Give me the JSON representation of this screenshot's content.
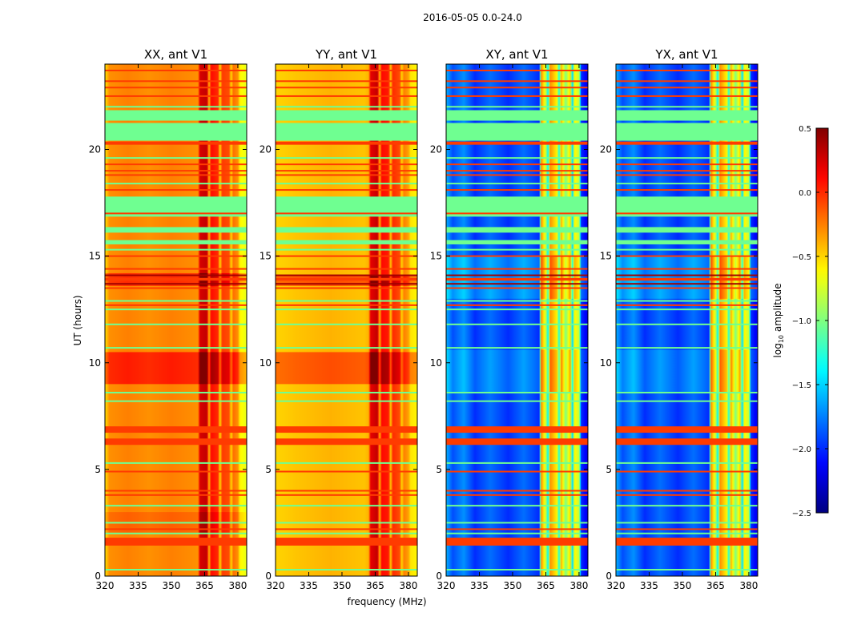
{
  "chart_data": {
    "type": "heatmap",
    "title": "2016-05-05 0.0-24.0",
    "xlabel": "frequency (MHz)",
    "ylabel": "UT (hours)",
    "xlim": [
      320,
      384
    ],
    "ylim": [
      0,
      24
    ],
    "xticks": [
      320,
      335,
      350,
      365,
      380
    ],
    "xtick_labels": [
      "320",
      "335",
      "350",
      "365",
      "380"
    ],
    "yticks": [
      0,
      5,
      10,
      15,
      20
    ],
    "ytick_labels": [
      "0",
      "5",
      "10",
      "15",
      "20"
    ],
    "colorbar": {
      "label": "log10 amplitude",
      "label_main": "log",
      "label_sub": "10",
      "label_rest": " amplitude",
      "range": [
        -2.5,
        0.5
      ],
      "ticks": [
        0.5,
        0.0,
        -0.5,
        -1.0,
        -1.5,
        -2.0,
        -2.5
      ],
      "tick_labels": [
        "0.5",
        "0.0",
        "−0.5",
        "−1.0",
        "−1.5",
        "−2.0",
        "−2.5"
      ],
      "colormap": "jet"
    },
    "panels": [
      {
        "title": "XX, ant V1",
        "frequency_profile": [
          [
            320,
            -0.55
          ],
          [
            322,
            -0.3
          ],
          [
            330,
            -0.25
          ],
          [
            340,
            -0.3
          ],
          [
            350,
            -0.25
          ],
          [
            362,
            -0.3
          ],
          [
            363,
            0.25
          ],
          [
            366,
            0.3
          ],
          [
            367,
            -0.4
          ],
          [
            368,
            0.1
          ],
          [
            371,
            0.0
          ],
          [
            372,
            -0.5
          ],
          [
            373,
            -0.05
          ],
          [
            376,
            -0.1
          ],
          [
            377,
            -0.5
          ],
          [
            378,
            -0.2
          ],
          [
            380,
            -0.3
          ],
          [
            381,
            -0.6
          ],
          [
            384,
            -0.7
          ]
        ],
        "shifts": [
          {
            "ut": [
              9.0,
              10.5
            ],
            "delta": 0.3
          },
          {
            "ut": [
              13.6,
              14.2
            ],
            "delta": 0.25
          },
          {
            "ut": [
              2.0,
              3.0
            ],
            "delta": 0.1
          }
        ]
      },
      {
        "title": "YY, ant V1",
        "frequency_profile": [
          [
            320,
            -0.5
          ],
          [
            330,
            -0.45
          ],
          [
            345,
            -0.4
          ],
          [
            360,
            -0.45
          ],
          [
            362,
            -0.4
          ],
          [
            363,
            0.2
          ],
          [
            366,
            0.3
          ],
          [
            367,
            -0.4
          ],
          [
            368,
            0.1
          ],
          [
            371,
            0.05
          ],
          [
            372,
            -0.45
          ],
          [
            373,
            0.0
          ],
          [
            376,
            -0.1
          ],
          [
            377,
            -0.5
          ],
          [
            378,
            -0.25
          ],
          [
            380,
            -0.35
          ],
          [
            381,
            -0.55
          ],
          [
            384,
            -0.6
          ]
        ],
        "shifts": [
          {
            "ut": [
              9.0,
              10.5
            ],
            "delta": 0.3
          },
          {
            "ut": [
              13.6,
              14.1
            ],
            "delta": 0.3
          }
        ]
      },
      {
        "title": "XY, ant V1",
        "frequency_profile": [
          [
            320,
            -1.6
          ],
          [
            323,
            -1.9
          ],
          [
            328,
            -1.7
          ],
          [
            333,
            -2.0
          ],
          [
            340,
            -1.8
          ],
          [
            348,
            -2.0
          ],
          [
            355,
            -1.8
          ],
          [
            362,
            -2.0
          ],
          [
            363,
            -0.3
          ],
          [
            365,
            -0.8
          ],
          [
            366,
            -1.4
          ],
          [
            367,
            -0.3
          ],
          [
            370,
            -0.6
          ],
          [
            371,
            -1.3
          ],
          [
            372,
            -0.4
          ],
          [
            374,
            -1.0
          ],
          [
            376,
            -0.5
          ],
          [
            377,
            -1.5
          ],
          [
            378,
            -0.6
          ],
          [
            380,
            -0.8
          ],
          [
            381,
            -2.0
          ],
          [
            384,
            -2.2
          ]
        ],
        "shifts": [
          {
            "ut": [
              8.6,
              10.6
            ],
            "delta": 0.15
          },
          {
            "ut": [
              13.0,
              15.0
            ],
            "delta": 0.2
          }
        ]
      },
      {
        "title": "YX, ant V1",
        "frequency_profile": [
          [
            320,
            -1.6
          ],
          [
            323,
            -1.9
          ],
          [
            328,
            -1.7
          ],
          [
            333,
            -2.0
          ],
          [
            340,
            -1.8
          ],
          [
            348,
            -2.0
          ],
          [
            355,
            -1.8
          ],
          [
            362,
            -2.0
          ],
          [
            363,
            -0.3
          ],
          [
            365,
            -0.8
          ],
          [
            366,
            -1.4
          ],
          [
            367,
            -0.3
          ],
          [
            370,
            -0.6
          ],
          [
            371,
            -1.3
          ],
          [
            372,
            -0.4
          ],
          [
            374,
            -1.0
          ],
          [
            376,
            -0.5
          ],
          [
            377,
            -1.5
          ],
          [
            378,
            -0.6
          ],
          [
            380,
            -0.8
          ],
          [
            381,
            -2.0
          ],
          [
            384,
            -2.2
          ]
        ],
        "shifts": [
          {
            "ut": [
              8.6,
              10.6
            ],
            "delta": 0.15
          },
          {
            "ut": [
              13.0,
              15.0
            ],
            "delta": 0.2
          }
        ]
      }
    ],
    "flagged_bands": [
      {
        "ut": [
          21.35,
          21.84
        ],
        "value": -1.05
      },
      {
        "ut": [
          20.41,
          21.24
        ],
        "value": -1.05
      },
      {
        "ut": [
          16.85,
          17.79
        ],
        "value": -1.05
      },
      {
        "ut": [
          16.1,
          16.36
        ],
        "value": -1.05
      },
      {
        "ut": [
          15.55,
          15.75
        ],
        "value": -1.05
      },
      {
        "ut": [
          20.22,
          20.37
        ],
        "value": -0.05
      },
      {
        "ut": [
          6.72,
          7.02
        ],
        "value": -0.05
      },
      {
        "ut": [
          6.15,
          6.45
        ],
        "value": -0.05
      },
      {
        "ut": [
          1.43,
          1.8
        ],
        "value": -0.05
      },
      {
        "ut": [
          13.85,
          13.98
        ],
        "value": -0.05
      }
    ],
    "thin_lines": {
      "orange": [
        23.7,
        23.2,
        22.9,
        22.5,
        19.3,
        19.0,
        18.8,
        18.1,
        17.0,
        15.0,
        14.4,
        13.5,
        12.7,
        4.9,
        4.0,
        3.8,
        2.2
      ],
      "green": [
        22.0,
        19.6,
        18.4,
        12.5,
        11.8,
        10.7,
        8.6,
        8.2,
        5.3,
        3.3,
        2.5,
        2.0,
        0.3,
        15.3,
        12.9
      ],
      "darkred": [
        13.7,
        14.1
      ]
    }
  }
}
